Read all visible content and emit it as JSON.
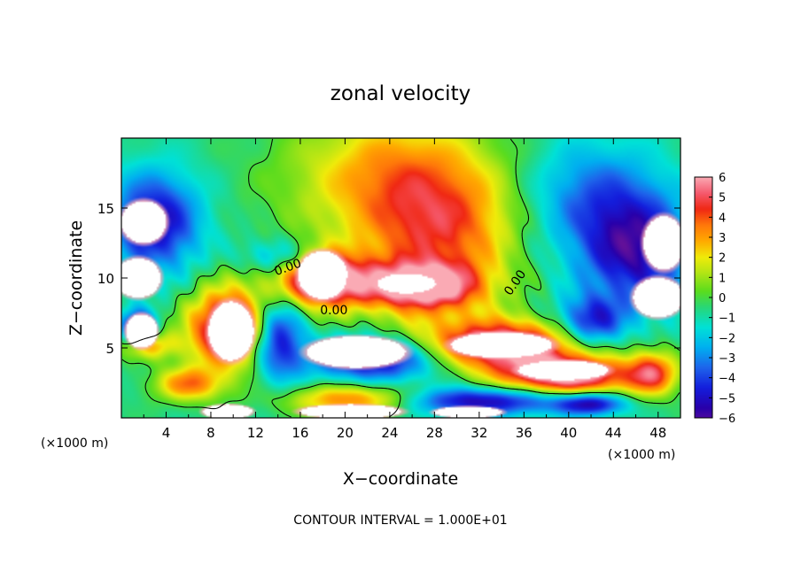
{
  "chart_data": {
    "type": "heatmap",
    "title": "zonal velocity",
    "xlabel": "X−coordinate",
    "ylabel": "Z−coordinate",
    "x_unit_label": "(×1000 m)",
    "x_unit_label_right": "(×1000 m)",
    "xlim": [
      0,
      50
    ],
    "ylim": [
      0,
      20
    ],
    "x_ticks": [
      4,
      8,
      12,
      16,
      20,
      24,
      28,
      32,
      36,
      40,
      44,
      48
    ],
    "y_ticks": [
      5,
      10,
      15
    ],
    "footer": "CONTOUR INTERVAL = 1.000E+01",
    "colorbar": {
      "ticks": [
        "6",
        "5",
        "4",
        "3",
        "2",
        "1",
        "0",
        "−1",
        "−2",
        "−3",
        "−4",
        "−5",
        "−6"
      ],
      "range": [
        -6,
        6
      ]
    },
    "contour_labels": [
      {
        "text": "0.00",
        "x": 15,
        "y": 10.5
      },
      {
        "text": "0.00",
        "x": 19,
        "y": 7.4
      },
      {
        "text": "0.00",
        "x": 35.5,
        "y": 9.5
      }
    ],
    "fields": {
      "positive_blobs": [
        {
          "x": 24,
          "y": 17,
          "rx": 9,
          "ry": 5,
          "v": 3.6
        },
        {
          "x": 31,
          "y": 13,
          "rx": 5,
          "ry": 5,
          "v": 2.6
        },
        {
          "x": 18,
          "y": 9.8,
          "rx": 4.5,
          "ry": 2.0,
          "v": 7
        },
        {
          "x": 27,
          "y": 9.4,
          "rx": 5,
          "ry": 1.6,
          "v": 6
        },
        {
          "x": 9.5,
          "y": 6.4,
          "rx": 3.5,
          "ry": 2.8,
          "v": 7
        },
        {
          "x": 34,
          "y": 5.2,
          "rx": 7,
          "ry": 1.8,
          "v": 7
        },
        {
          "x": 40,
          "y": 3.0,
          "rx": 6,
          "ry": 1.4,
          "v": 7
        },
        {
          "x": 6,
          "y": 2.4,
          "rx": 3,
          "ry": 1.2,
          "v": 4
        },
        {
          "x": 21,
          "y": 1.3,
          "rx": 6,
          "ry": 1.1,
          "v": 4.5
        },
        {
          "x": 47.5,
          "y": 3.2,
          "rx": 2.2,
          "ry": 1.6,
          "v": 4.5
        },
        {
          "x": 2.5,
          "y": 5.2,
          "rx": 2.5,
          "ry": 1.0,
          "v": 3.5
        },
        {
          "x": 26,
          "y": 12,
          "rx": 5,
          "ry": 6,
          "v": 2.2
        }
      ],
      "negative_blobs": [
        {
          "x": 3,
          "y": 14,
          "rx": 4,
          "ry": 3.5,
          "v": -4.8
        },
        {
          "x": 46,
          "y": 12,
          "rx": 5,
          "ry": 4,
          "v": -4.8
        },
        {
          "x": 42,
          "y": 6.8,
          "rx": 3,
          "ry": 1.8,
          "v": -4.2
        },
        {
          "x": 14,
          "y": 5.8,
          "rx": 2.2,
          "ry": 3.0,
          "v": -4.6
        },
        {
          "x": 23,
          "y": 4.2,
          "rx": 6,
          "ry": 1.6,
          "v": -5.2
        },
        {
          "x": 32,
          "y": 1.2,
          "rx": 8,
          "ry": 1.0,
          "v": -5.0
        },
        {
          "x": 42,
          "y": 1.0,
          "rx": 3,
          "ry": 0.8,
          "v": -4.5
        },
        {
          "x": 1.5,
          "y": 6.5,
          "rx": 1.6,
          "ry": 1.2,
          "v": -4.8
        },
        {
          "x": 14,
          "y": 11.5,
          "rx": 3,
          "ry": 1.3,
          "v": -2.5
        },
        {
          "x": 42,
          "y": 16,
          "rx": 6,
          "ry": 4,
          "v": -2.5
        }
      ],
      "white_regions": [
        {
          "x": 18,
          "y": 10.2,
          "rx": 2.2,
          "ry": 1.7
        },
        {
          "x": 25.5,
          "y": 9.6,
          "rx": 2.6,
          "ry": 0.7
        },
        {
          "x": 9.8,
          "y": 6.2,
          "rx": 2.0,
          "ry": 2.1
        },
        {
          "x": 21,
          "y": 4.7,
          "rx": 4.4,
          "ry": 1.1
        },
        {
          "x": 34,
          "y": 5.2,
          "rx": 4.5,
          "ry": 0.9
        },
        {
          "x": 39.5,
          "y": 3.4,
          "rx": 4.0,
          "ry": 0.7
        },
        {
          "x": 2,
          "y": 14.0,
          "rx": 2.0,
          "ry": 1.5
        },
        {
          "x": 1.5,
          "y": 10.0,
          "rx": 2.0,
          "ry": 1.4
        },
        {
          "x": 1.8,
          "y": 6.2,
          "rx": 1.4,
          "ry": 1.2
        },
        {
          "x": 48.5,
          "y": 12.5,
          "rx": 1.8,
          "ry": 1.9
        },
        {
          "x": 48,
          "y": 8.6,
          "rx": 2.2,
          "ry": 1.4
        },
        {
          "x": 9.5,
          "y": 0.45,
          "rx": 2.2,
          "ry": 0.5
        },
        {
          "x": 20.5,
          "y": 0.45,
          "rx": 4.5,
          "ry": 0.5
        },
        {
          "x": 31,
          "y": 0.4,
          "rx": 3,
          "ry": 0.4
        }
      ]
    }
  }
}
